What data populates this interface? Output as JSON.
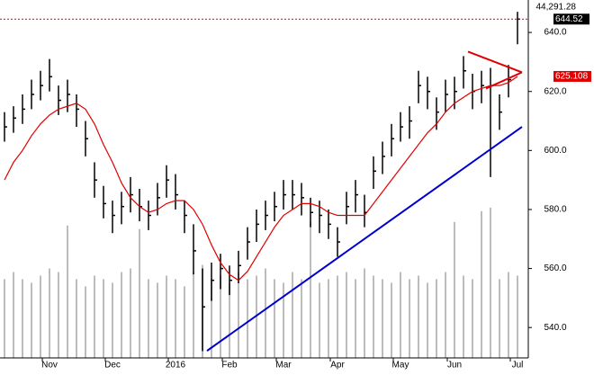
{
  "chart_data": {
    "type": "ohlc",
    "top_label": "44,291.28",
    "categories": [
      null,
      null,
      null,
      null,
      null,
      "Nov",
      null,
      null,
      null,
      null,
      null,
      null,
      "Dec",
      null,
      null,
      null,
      null,
      null,
      null,
      "2016",
      null,
      null,
      null,
      null,
      null,
      "Feb",
      null,
      null,
      null,
      null,
      null,
      "Mar",
      null,
      null,
      null,
      null,
      null,
      "Apr",
      null,
      null,
      null,
      null,
      null,
      null,
      "May",
      null,
      null,
      null,
      null,
      null,
      "Jun",
      null,
      null,
      null,
      null,
      null,
      null,
      "Jul"
    ],
    "high": [
      613,
      615,
      619,
      624,
      627,
      631,
      622,
      624,
      619,
      610,
      596,
      588,
      583,
      586,
      591,
      587,
      583,
      589,
      595,
      592,
      583,
      575,
      560,
      562,
      565,
      561,
      566,
      574,
      580,
      583,
      586,
      590,
      590,
      589,
      584,
      583,
      580,
      574,
      586,
      590,
      585,
      598,
      603,
      609,
      613,
      615,
      627,
      625,
      618,
      624,
      625,
      632,
      626,
      627,
      628,
      619,
      629,
      647
    ],
    "low": [
      603,
      606,
      609,
      614,
      617,
      620,
      612,
      613,
      608,
      598,
      584,
      577,
      572,
      575,
      579,
      576,
      573,
      578,
      584,
      580,
      572,
      558,
      532,
      549,
      553,
      551,
      555,
      563,
      569,
      573,
      576,
      580,
      580,
      578,
      574,
      572,
      570,
      564,
      575,
      579,
      574,
      587,
      592,
      598,
      603,
      604,
      616,
      614,
      607,
      613,
      614,
      621,
      614,
      616,
      591,
      607,
      618,
      636
    ],
    "close": [
      608,
      611,
      614,
      619,
      622,
      625,
      617,
      619,
      614,
      604,
      590,
      582,
      578,
      581,
      585,
      581,
      578,
      584,
      590,
      585,
      578,
      566,
      547,
      556,
      560,
      556,
      561,
      569,
      575,
      578,
      581,
      585,
      585,
      584,
      579,
      578,
      575,
      569,
      581,
      585,
      579,
      593,
      598,
      604,
      608,
      610,
      622,
      620,
      613,
      619,
      620,
      627,
      620,
      622,
      622,
      613,
      624,
      644.52
    ],
    "bar_color": "#000000",
    "ma": {
      "color": "#e00000",
      "values": [
        590,
        596,
        600,
        605,
        609,
        612,
        614,
        615,
        616,
        614,
        609,
        602,
        596,
        589,
        584,
        581,
        579,
        580,
        582,
        583,
        583,
        580,
        575,
        568,
        562,
        558,
        556,
        559,
        564,
        569,
        574,
        578,
        580,
        582,
        582,
        581,
        579,
        578,
        578,
        578,
        578,
        582,
        586,
        590,
        594,
        598,
        602,
        606,
        609,
        613,
        616,
        618,
        620,
        621,
        622,
        622,
        623,
        625.108
      ]
    },
    "volume": {
      "color": "#bdbdbd",
      "values": [
        22,
        24,
        22,
        21,
        23,
        25,
        24,
        37,
        22,
        20,
        23,
        22,
        21,
        24,
        25,
        36,
        22,
        21,
        23,
        22,
        20,
        24,
        26,
        22,
        23,
        21,
        24,
        22,
        23,
        25,
        22,
        21,
        24,
        22,
        38,
        21,
        22,
        23,
        24,
        22,
        25,
        23,
        22,
        21,
        24,
        22,
        23,
        21,
        22,
        24,
        38,
        23,
        22,
        41,
        42,
        22,
        24,
        23
      ]
    },
    "y2lim": [
      0,
      100
    ],
    "trendlines": [
      {
        "color": "#0000cc",
        "x": [
          22.5,
          57.5
        ],
        "y": [
          532.1,
          608
        ]
      },
      {
        "color": "#e00000",
        "x": [
          51.5,
          57.5
        ],
        "y": [
          633.5,
          626.5
        ]
      },
      {
        "color": "#e00000",
        "x": [
          53.5,
          57.5
        ],
        "y": [
          621,
          626.5
        ]
      }
    ],
    "ylim": [
      529.7,
      651
    ],
    "yticks": [
      {
        "value": 540,
        "label": "540.0"
      },
      {
        "value": 560,
        "label": "560.0"
      },
      {
        "value": 580,
        "label": "580.0"
      },
      {
        "value": 600,
        "label": "600.0"
      },
      {
        "value": 620,
        "label": "620.0"
      },
      {
        "value": 640,
        "label": "640.0"
      }
    ]
  }
}
